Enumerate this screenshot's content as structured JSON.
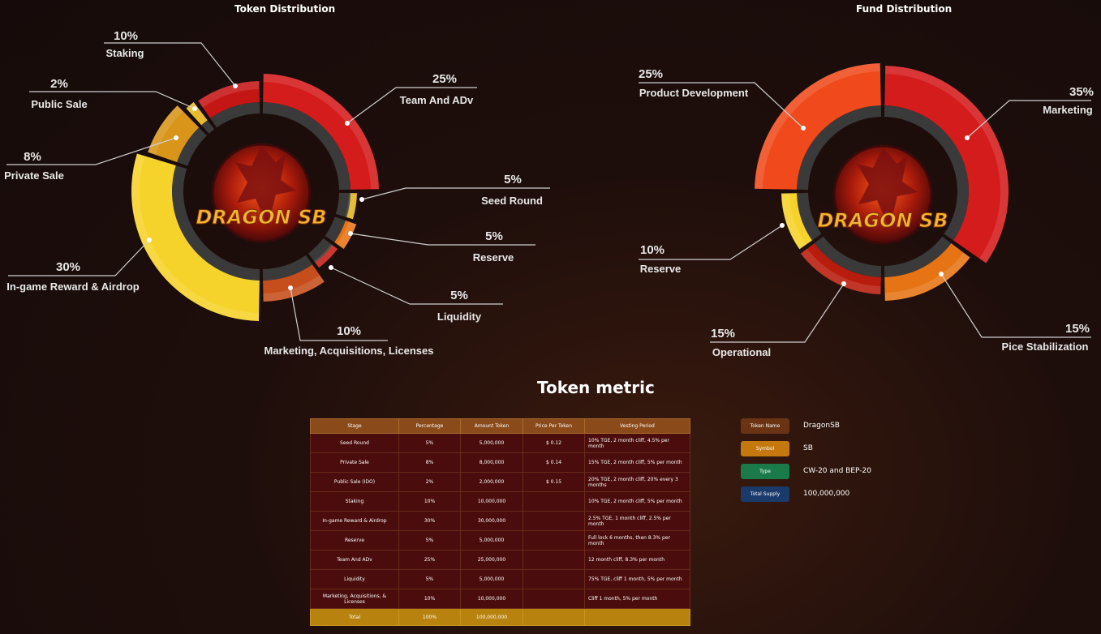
{
  "chart_data": [
    {
      "type": "pie",
      "title": "Token Distribution",
      "categories": [
        "Team And ADv",
        "Seed Round",
        "Reserve",
        "Liquidity",
        "Marketing, Acquisitions, Licenses",
        "In-game Reward & Airdrop",
        "Private Sale",
        "Public Sale",
        "Staking"
      ],
      "values": [
        25,
        5,
        5,
        5,
        10,
        30,
        8,
        2,
        10
      ],
      "labels": [
        "25%",
        "5%",
        "5%",
        "5%",
        "10%",
        "30%",
        "8%",
        "2%",
        "10%"
      ],
      "colors": [
        "#d41c1c",
        "#e2b31e",
        "#e67414",
        "#c01e14",
        "#c54e1c",
        "#f6d32a",
        "#d8951a",
        "#e8bb2a",
        "#c51616"
      ]
    },
    {
      "type": "pie",
      "title": "Fund Distribution",
      "categories": [
        "Marketing",
        "Pice Stabilization",
        "Operational",
        "Reserve",
        "Product Development"
      ],
      "values": [
        35,
        15,
        15,
        10,
        25
      ],
      "labels": [
        "35%",
        "15%",
        "15%",
        "10%",
        "25%"
      ],
      "colors": [
        "#d41c1c",
        "#e67414",
        "#b81c0c",
        "#f6d32a",
        "#f04a1c"
      ]
    }
  ],
  "logo_text": "DRAGON SB",
  "metric": {
    "title": "Token metric",
    "headers": [
      "Stage",
      "Percentage",
      "Amount Token",
      "Price Per Token",
      "Vesting Period"
    ],
    "rows": [
      [
        "Seed Round",
        "5%",
        "5,000,000",
        "$ 0.12",
        "10% TGE, 2 month cliff, 4.5% per month"
      ],
      [
        "Private Sale",
        "8%",
        "8,000,000",
        "$ 0.14",
        "15% TGE, 2 month cliff, 5% per month"
      ],
      [
        "Public Sale (IDO)",
        "2%",
        "2,000,000",
        "$ 0.15",
        "20% TGE, 2 month cliff, 20% every 3 months"
      ],
      [
        "Staking",
        "10%",
        "10,000,000",
        "",
        "10% TGE, 2 month cliff, 5% per month"
      ],
      [
        "In-game Reward & Airdrop",
        "30%",
        "30,000,000",
        "",
        "2.5% TGE, 1 month cliff, 2.5% per month"
      ],
      [
        "Reserve",
        "5%",
        "5,000,000",
        "",
        "Full lock 6 months, then 8.3% per month"
      ],
      [
        "Team And ADv",
        "25%",
        "25,000,000",
        "",
        "12 month cliff, 8.3% per month"
      ],
      [
        "Liquidity",
        "5%",
        "5,000,000",
        "",
        "75% TGE, cliff 1 month, 5% per month"
      ],
      [
        "Marketing, Acquisitions, & Licenses",
        "10%",
        "10,000,000",
        "",
        "Cliff 1 month, 5% per month"
      ]
    ],
    "total": [
      "Total",
      "100%",
      "100,000,000",
      "",
      ""
    ]
  },
  "info": [
    {
      "label": "Token Name",
      "value": "DragonSB",
      "color": "#6a3414"
    },
    {
      "label": "Symbol",
      "value": "SB",
      "color": "#c5780e"
    },
    {
      "label": "Type",
      "value": "CW-20 and BEP-20",
      "color": "#1a7a4a"
    },
    {
      "label": "Total Supply",
      "value": "100,000,000",
      "color": "#1a3a6a"
    }
  ]
}
